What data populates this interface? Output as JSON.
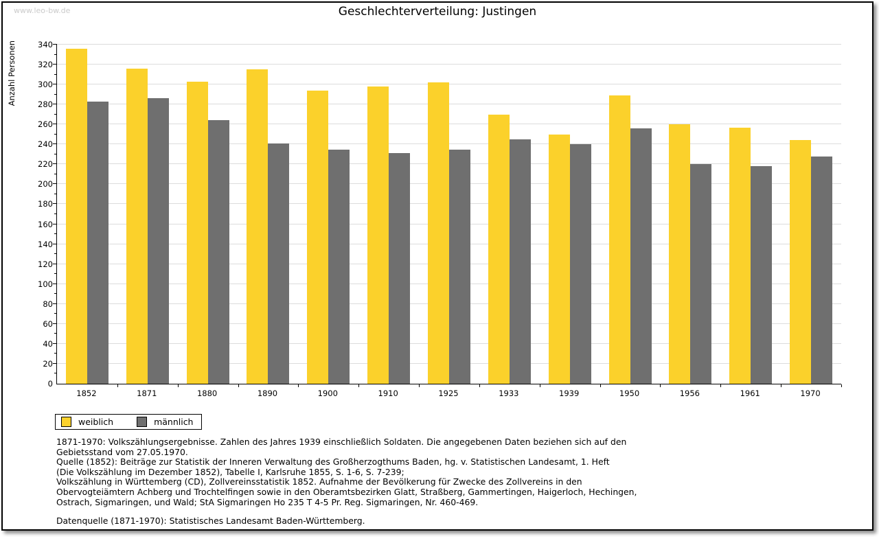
{
  "page": {
    "watermark": "www.leo-bw.de",
    "title": "Geschlechterverteilung: Justingen"
  },
  "chart_data": {
    "type": "bar",
    "title": "Geschlechterverteilung: Justingen",
    "xlabel": "",
    "ylabel": "Anzahl Personen",
    "ylim": [
      0,
      340
    ],
    "ytick_major_step": 20,
    "ytick_minor_step": 10,
    "grid": true,
    "legend_position": "bottom-left",
    "categories": [
      "1852",
      "1871",
      "1880",
      "1890",
      "1900",
      "1910",
      "1925",
      "1933",
      "1939",
      "1950",
      "1956",
      "1961",
      "1970"
    ],
    "series": [
      {
        "name": "weiblich",
        "color": "#FBD12B",
        "values": [
          336,
          316,
          303,
          315,
          294,
          298,
          302,
          270,
          250,
          289,
          260,
          257,
          244
        ]
      },
      {
        "name": "männlich",
        "color": "#6F6F6F",
        "values": [
          283,
          286,
          264,
          241,
          235,
          231,
          235,
          245,
          240,
          256,
          220,
          218,
          228
        ]
      }
    ]
  },
  "colors": {
    "gridline": "#dcdcdc",
    "axis": "#000000",
    "watermark": "#cbcbcb"
  },
  "footer": {
    "lines": [
      "1871-1970: Volkszählungsergebnisse. Zahlen des Jahres 1939 einschließlich Soldaten. Die angegebenen Daten beziehen sich auf den",
      "Gebietsstand vom 27.05.1970.",
      "Quelle (1852): Beiträge zur Statistik der Inneren Verwaltung des Großherzogthums Baden, hg. v. Statistischen Landesamt, 1. Heft",
      "(Die Volkszählung im Dezember 1852), Tabelle I, Karlsruhe 1855, S. 1-6, S. 7-239;",
      "Volkszählung in Württemberg (CD), Zollvereinsstatistik 1852. Aufnahme der Bevölkerung für Zwecke des Zollvereins in den",
      "Obervogteiämtern Achberg und Trochtelfingen sowie in den Oberamtsbezirken Glatt, Straßberg, Gammertingen, Haigerloch, Hechingen,",
      "Ostrach, Sigmaringen, und Wald; StA Sigmaringen Ho 235 T 4-5 Pr. Reg. Sigmaringen, Nr. 460-469."
    ],
    "datasource": "Datenquelle (1871-1970): Statistisches Landesamt Baden-Württemberg."
  }
}
